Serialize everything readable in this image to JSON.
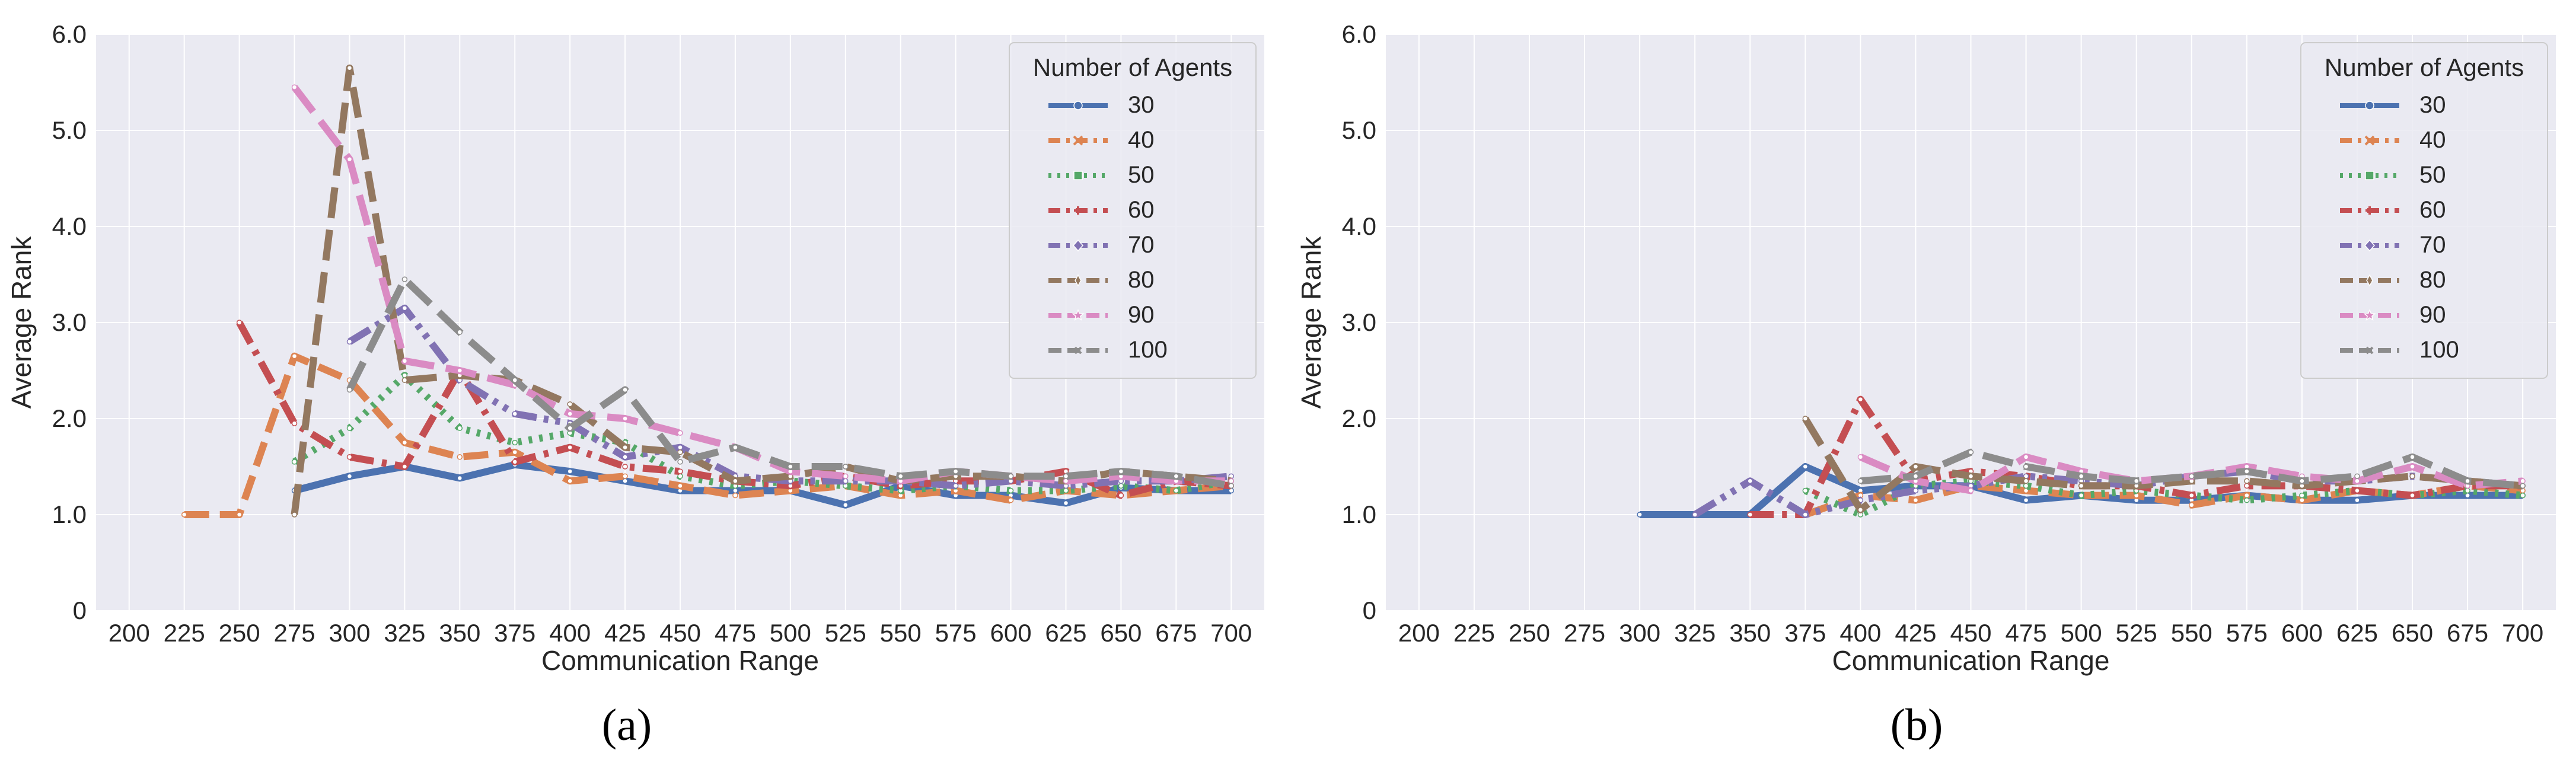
{
  "chart_data": [
    {
      "type": "line",
      "panel_label": "(a)",
      "xlabel": "Communication Range",
      "ylabel": "Average Rank",
      "xlim": [
        185,
        715
      ],
      "ylim": [
        0,
        6
      ],
      "x_ticks": [
        "200",
        "225",
        "250",
        "275",
        "300",
        "325",
        "350",
        "375",
        "400",
        "425",
        "450",
        "475",
        "500",
        "525",
        "550",
        "575",
        "600",
        "625",
        "650",
        "675",
        "700"
      ],
      "y_ticks": [
        "0",
        "1.0",
        "2.0",
        "3.0",
        "4.0",
        "5.0",
        "6.0"
      ],
      "grid": true,
      "legend_title": "Number of Agents",
      "legend_position": "top-right",
      "series": [
        {
          "name": "30",
          "color": "#4c72b0",
          "dash": "solid",
          "marker": "circle",
          "x": [
            275,
            300,
            325,
            350,
            375,
            400,
            425,
            450,
            475,
            500,
            525,
            550,
            575,
            600,
            625,
            650,
            675,
            700
          ],
          "y": [
            1.25,
            1.4,
            1.5,
            1.38,
            1.52,
            1.45,
            1.35,
            1.25,
            1.25,
            1.25,
            1.1,
            1.3,
            1.2,
            1.2,
            1.12,
            1.28,
            1.25,
            1.25
          ]
        },
        {
          "name": "40",
          "color": "#dd8452",
          "dash": "dashed",
          "marker": "x",
          "x": [
            225,
            250,
            275,
            300,
            325,
            350,
            375,
            400,
            425,
            450,
            475,
            500,
            525,
            550,
            575,
            600,
            625,
            650,
            675,
            700
          ],
          "y": [
            1.0,
            1.0,
            2.65,
            2.4,
            1.75,
            1.6,
            1.65,
            1.35,
            1.4,
            1.3,
            1.2,
            1.25,
            1.3,
            1.2,
            1.25,
            1.15,
            1.25,
            1.2,
            1.25,
            1.3
          ]
        },
        {
          "name": "50",
          "color": "#55a868",
          "dash": "dotted",
          "marker": "square",
          "x": [
            275,
            300,
            325,
            350,
            375,
            400,
            425,
            450,
            475,
            500,
            525,
            550,
            575,
            600,
            625,
            650,
            675,
            700
          ],
          "y": [
            1.55,
            1.9,
            2.45,
            1.9,
            1.75,
            1.85,
            1.75,
            1.4,
            1.3,
            1.35,
            1.3,
            1.25,
            1.3,
            1.25,
            1.25,
            1.3,
            1.25,
            1.35
          ]
        },
        {
          "name": "60",
          "color": "#c44e52",
          "dash": "dashdot",
          "marker": "plus",
          "x": [
            250,
            275,
            300,
            325,
            350,
            375,
            400,
            425,
            450,
            475,
            500,
            525,
            550,
            575,
            600,
            625,
            650,
            675,
            700
          ],
          "y": [
            3.0,
            1.95,
            1.6,
            1.5,
            2.5,
            1.55,
            1.7,
            1.5,
            1.45,
            1.35,
            1.3,
            1.4,
            1.3,
            1.35,
            1.35,
            1.45,
            1.2,
            1.35,
            1.3
          ]
        },
        {
          "name": "70",
          "color": "#8172b3",
          "dash": "dashdotdot",
          "marker": "diamond",
          "x": [
            300,
            325,
            350,
            375,
            400,
            425,
            450,
            475,
            500,
            525,
            550,
            575,
            600,
            625,
            650,
            675,
            700
          ],
          "y": [
            2.8,
            3.15,
            2.4,
            2.05,
            1.95,
            1.6,
            1.7,
            1.4,
            1.35,
            1.35,
            1.35,
            1.3,
            1.35,
            1.3,
            1.35,
            1.35,
            1.4
          ]
        },
        {
          "name": "80",
          "color": "#937860",
          "dash": "longdash",
          "marker": "thin-diamond",
          "x": [
            275,
            300,
            325,
            350,
            375,
            400,
            425,
            450,
            475,
            500,
            525,
            550,
            575,
            600,
            625,
            650,
            675,
            700
          ],
          "y": [
            1.0,
            5.65,
            2.4,
            2.45,
            2.4,
            2.15,
            1.7,
            1.65,
            1.35,
            1.4,
            1.5,
            1.35,
            1.4,
            1.4,
            1.35,
            1.45,
            1.4,
            1.35
          ]
        },
        {
          "name": "90",
          "color": "#da8bc3",
          "dash": "longdash",
          "marker": "star",
          "x": [
            275,
            300,
            325,
            350,
            375,
            400,
            425,
            450,
            475,
            500,
            525,
            550,
            575,
            600,
            625,
            650,
            675,
            700
          ],
          "y": [
            5.45,
            4.7,
            2.6,
            2.5,
            2.35,
            2.05,
            2.0,
            1.85,
            1.7,
            1.45,
            1.4,
            1.35,
            1.45,
            1.4,
            1.35,
            1.4,
            1.35,
            1.35
          ]
        },
        {
          "name": "100",
          "color": "#8c8c8c",
          "dash": "longdash",
          "marker": "x-small",
          "x": [
            300,
            325,
            350,
            375,
            400,
            425,
            450,
            475,
            500,
            525,
            550,
            575,
            600,
            625,
            650,
            675,
            700
          ],
          "y": [
            2.3,
            3.45,
            2.9,
            2.4,
            1.9,
            2.3,
            1.55,
            1.7,
            1.5,
            1.5,
            1.4,
            1.45,
            1.4,
            1.4,
            1.45,
            1.4,
            1.3
          ]
        }
      ]
    },
    {
      "type": "line",
      "panel_label": "(b)",
      "xlabel": "Communication Range",
      "ylabel": "Average Rank",
      "xlim": [
        185,
        715
      ],
      "ylim": [
        0,
        6
      ],
      "x_ticks": [
        "200",
        "225",
        "250",
        "275",
        "300",
        "325",
        "350",
        "375",
        "400",
        "425",
        "450",
        "475",
        "500",
        "525",
        "550",
        "575",
        "600",
        "625",
        "650",
        "675",
        "700"
      ],
      "y_ticks": [
        "0",
        "1.0",
        "2.0",
        "3.0",
        "4.0",
        "5.0",
        "6.0"
      ],
      "grid": true,
      "legend_title": "Number of Agents",
      "legend_position": "top-right",
      "series": [
        {
          "name": "30",
          "color": "#4c72b0",
          "dash": "solid",
          "marker": "circle",
          "x": [
            300,
            325,
            350,
            375,
            400,
            425,
            450,
            475,
            500,
            525,
            550,
            575,
            600,
            625,
            650,
            675,
            700
          ],
          "y": [
            1.0,
            1.0,
            1.0,
            1.5,
            1.25,
            1.3,
            1.3,
            1.15,
            1.2,
            1.15,
            1.15,
            1.2,
            1.15,
            1.15,
            1.2,
            1.2,
            1.2
          ]
        },
        {
          "name": "40",
          "color": "#dd8452",
          "dash": "dashed",
          "marker": "x",
          "x": [
            375,
            400,
            425,
            450,
            475,
            500,
            525,
            550,
            575,
            600,
            625,
            650,
            675,
            700
          ],
          "y": [
            1.0,
            1.2,
            1.15,
            1.3,
            1.25,
            1.2,
            1.2,
            1.1,
            1.2,
            1.15,
            1.25,
            1.2,
            1.3,
            1.25
          ]
        },
        {
          "name": "50",
          "color": "#55a868",
          "dash": "dotted",
          "marker": "square",
          "x": [
            375,
            400,
            425,
            450,
            475,
            500,
            525,
            550,
            575,
            600,
            625,
            650,
            675,
            700
          ],
          "y": [
            1.25,
            1.0,
            1.3,
            1.35,
            1.3,
            1.2,
            1.25,
            1.2,
            1.15,
            1.2,
            1.25,
            1.2,
            1.25,
            1.2
          ]
        },
        {
          "name": "60",
          "color": "#c44e52",
          "dash": "dashdot",
          "marker": "plus",
          "x": [
            350,
            375,
            400,
            425,
            450,
            475,
            500,
            525,
            550,
            575,
            600,
            625,
            650,
            675,
            700
          ],
          "y": [
            1.0,
            1.0,
            2.2,
            1.35,
            1.45,
            1.4,
            1.3,
            1.3,
            1.2,
            1.3,
            1.3,
            1.25,
            1.2,
            1.3,
            1.3
          ]
        },
        {
          "name": "70",
          "color": "#8172b3",
          "dash": "dashdotdot",
          "marker": "diamond",
          "x": [
            325,
            350,
            375,
            400,
            425,
            450,
            475,
            500,
            525,
            550,
            575,
            600,
            625,
            650,
            675,
            700
          ],
          "y": [
            1.0,
            1.35,
            1.0,
            1.15,
            1.25,
            1.3,
            1.4,
            1.35,
            1.3,
            1.4,
            1.45,
            1.35,
            1.35,
            1.4,
            1.35,
            1.3
          ]
        },
        {
          "name": "80",
          "color": "#937860",
          "dash": "longdash",
          "marker": "thin-diamond",
          "x": [
            375,
            400,
            425,
            450,
            475,
            500,
            525,
            550,
            575,
            600,
            625,
            650,
            675,
            700
          ],
          "y": [
            2.0,
            1.05,
            1.5,
            1.4,
            1.35,
            1.3,
            1.3,
            1.35,
            1.35,
            1.3,
            1.35,
            1.4,
            1.35,
            1.3
          ]
        },
        {
          "name": "90",
          "color": "#da8bc3",
          "dash": "longdash",
          "marker": "star",
          "x": [
            400,
            425,
            450,
            475,
            500,
            525,
            550,
            575,
            600,
            625,
            650,
            675,
            700
          ],
          "y": [
            1.6,
            1.35,
            1.25,
            1.6,
            1.45,
            1.35,
            1.4,
            1.5,
            1.4,
            1.35,
            1.5,
            1.3,
            1.35
          ]
        },
        {
          "name": "100",
          "color": "#8c8c8c",
          "dash": "longdash",
          "marker": "x-small",
          "x": [
            400,
            425,
            450,
            475,
            500,
            525,
            550,
            575,
            600,
            625,
            650,
            675,
            700
          ],
          "y": [
            1.35,
            1.4,
            1.65,
            1.5,
            1.4,
            1.35,
            1.4,
            1.45,
            1.35,
            1.4,
            1.6,
            1.35,
            1.3
          ]
        }
      ]
    }
  ]
}
